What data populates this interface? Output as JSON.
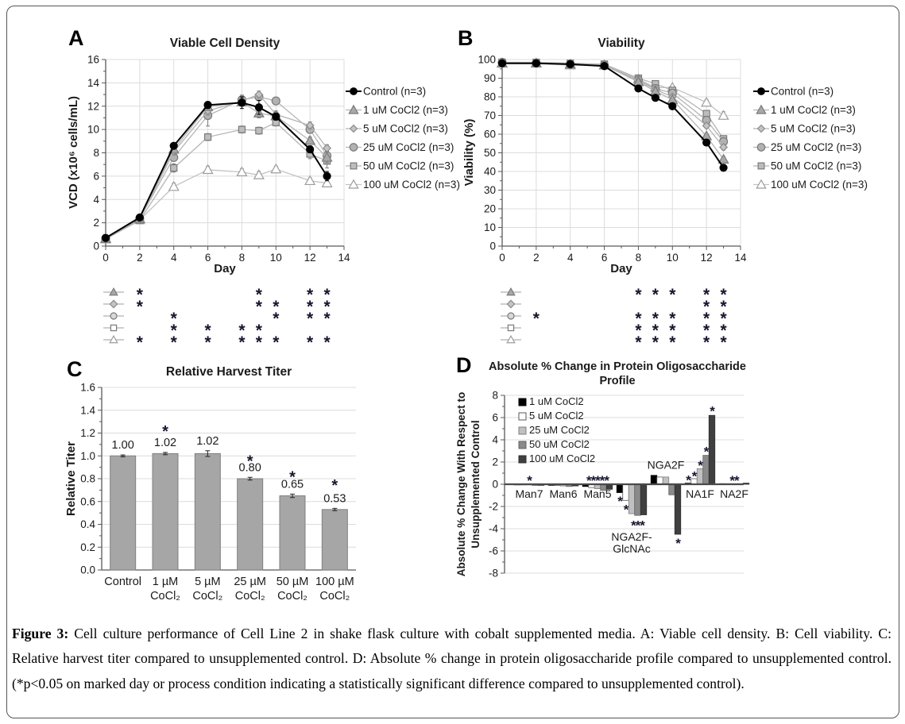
{
  "figure": {
    "panel_letters": {
      "a": "A",
      "b": "B",
      "c": "C",
      "d": "D"
    },
    "caption_prefix": "Figure 3:",
    "caption_body": "Cell culture performance of Cell Line 2 in shake flask culture with cobalt supplemented media. A: Viable cell density. B: Cell viability. C: Relative harvest titer compared to unsupplemented control. D: Absolute % change in protein oligosaccharide profile compared to unsupplemented control. (*p<0.05 on marked day or process condition indicating a statistically significant difference compared to unsupplemented control)."
  },
  "colors": {
    "grid": "#dcdcdc",
    "axis": "#595959",
    "tick_text": "#1a1a1a",
    "asterisk": "#16162e",
    "gray_line": "#b5b5b5"
  },
  "chart_data": [
    {
      "id": "chartA",
      "panel": "A",
      "type": "line",
      "title": "Viable Cell Density",
      "xlabel": "Day",
      "ylabel": "VCD (x10⁶ cells/mL)",
      "xlim": [
        0,
        14
      ],
      "ylim": [
        0,
        16
      ],
      "xticks": [
        0,
        2,
        4,
        6,
        8,
        10,
        12,
        14
      ],
      "ytick_step": 2,
      "ytick_minor": 1,
      "xtick_minor": 1,
      "x": [
        0,
        2,
        4,
        6,
        8,
        9,
        10,
        12,
        13
      ],
      "legend_position": "right",
      "series": [
        {
          "name": "Control (n=3)",
          "marker": "circle",
          "size": 9,
          "fill": "#000000",
          "stroke": "#000000",
          "line": "#000000",
          "lw": 2,
          "values": [
            0.7,
            2.45,
            8.6,
            12.1,
            12.3,
            11.9,
            11.1,
            8.3,
            6.0
          ],
          "err": [
            0,
            0,
            0.25,
            0.3,
            0.5,
            0.6,
            0.3,
            0.3,
            0.4
          ]
        },
        {
          "name": "1 uM CoCl2 (n=3)",
          "marker": "triangle",
          "size": 10,
          "fill": "#a8a8a8",
          "stroke": "#7a7a7a",
          "line": "#b5b5b5",
          "lw": 1.3,
          "values": [
            0.65,
            2.35,
            8.3,
            11.95,
            12.35,
            11.4,
            11.15,
            9.05,
            7.6
          ],
          "err": [
            0,
            0,
            0.3,
            0.3,
            0.35,
            0.4,
            0.3,
            0.3,
            0.45
          ]
        },
        {
          "name": "5 uM CoCl2 (n=3)",
          "marker": "diamond",
          "size": 8,
          "fill": "#c4c4c4",
          "stroke": "#8a8a8a",
          "line": "#b5b5b5",
          "lw": 1.3,
          "values": [
            0.65,
            2.3,
            8.1,
            11.6,
            12.45,
            13.0,
            11.3,
            10.35,
            8.4
          ],
          "err": [
            0,
            0,
            0.3,
            0.35,
            0.35,
            0.3,
            0.3,
            0.3,
            0.3
          ]
        },
        {
          "name": "25 uM CoCl2 (n=3)",
          "marker": "circle",
          "size": 10,
          "fill": "#b2b2b2",
          "stroke": "#7a7a7a",
          "line": "#b5b5b5",
          "lw": 1.3,
          "values": [
            0.65,
            2.35,
            7.6,
            11.2,
            12.55,
            12.8,
            12.45,
            10.0,
            7.75
          ],
          "err": [
            0,
            0,
            0.3,
            0.9,
            0.4,
            0.3,
            0.3,
            0.3,
            0.4
          ]
        },
        {
          "name": "50 uM CoCl2 (n=3)",
          "marker": "square",
          "size": 9,
          "fill": "#bdbdbd",
          "stroke": "#7a7a7a",
          "line": "#b5b5b5",
          "lw": 1.3,
          "values": [
            0.6,
            2.2,
            6.7,
            9.35,
            10.0,
            9.9,
            10.6,
            7.9,
            7.3
          ],
          "err": [
            0,
            0,
            0.35,
            0.3,
            0.3,
            0.3,
            0.3,
            0.4,
            0.6
          ]
        },
        {
          "name": "100 uM CoCl2 (n=3)",
          "marker": "triangle",
          "size": 10,
          "fill": "#ffffff",
          "stroke": "#9c9c9c",
          "line": "#c2c2c2",
          "lw": 1.3,
          "values": [
            0.6,
            2.25,
            5.1,
            6.55,
            6.35,
            6.1,
            6.6,
            5.6,
            5.4
          ],
          "err": [
            0,
            0.15,
            0.3,
            0.3,
            0.3,
            0.3,
            0.25,
            0.25,
            0.3
          ]
        }
      ]
    },
    {
      "id": "chartB",
      "panel": "B",
      "type": "line",
      "title": "Viability",
      "xlabel": "Day",
      "ylabel": "Viability (%)",
      "xlim": [
        0,
        14
      ],
      "ylim": [
        0,
        100
      ],
      "xticks": [
        0,
        2,
        4,
        6,
        8,
        10,
        12,
        14
      ],
      "ytick_step": 10,
      "ytick_minor": 5,
      "xtick_minor": 1,
      "x": [
        0,
        2,
        4,
        6,
        8,
        9,
        10,
        12,
        13
      ],
      "legend_position": "right",
      "series": [
        {
          "name": "Control (n=3)",
          "marker": "circle",
          "size": 9,
          "fill": "#000000",
          "stroke": "#000000",
          "line": "#000000",
          "lw": 2,
          "values": [
            98,
            98,
            97.5,
            96.5,
            84.5,
            79.5,
            75,
            55.5,
            42
          ],
          "err": [
            0.5,
            0.5,
            0.5,
            0.5,
            1,
            1,
            1,
            1,
            1
          ]
        },
        {
          "name": "1 uM CoCl2 (n=3)",
          "marker": "triangle",
          "size": 10,
          "fill": "#a8a8a8",
          "stroke": "#7a7a7a",
          "line": "#b5b5b5",
          "lw": 1.3,
          "values": [
            98,
            98,
            97.5,
            97,
            88,
            83,
            78.5,
            59,
            46.5
          ],
          "err": [
            0.5,
            0.5,
            0.5,
            0.5,
            1,
            1,
            1,
            1.2,
            1.5
          ]
        },
        {
          "name": "5 uM CoCl2 (n=3)",
          "marker": "diamond",
          "size": 8,
          "fill": "#c4c4c4",
          "stroke": "#8a8a8a",
          "line": "#b5b5b5",
          "lw": 1.3,
          "values": [
            98.5,
            98,
            97.5,
            97,
            88.5,
            84,
            80,
            64.5,
            53
          ],
          "err": [
            0.5,
            0.5,
            0.5,
            0.5,
            1,
            1,
            1,
            1.2,
            1.5
          ]
        },
        {
          "name": "25 uM CoCl2 (n=3)",
          "marker": "circle",
          "size": 10,
          "fill": "#b2b2b2",
          "stroke": "#7a7a7a",
          "line": "#b5b5b5",
          "lw": 1.3,
          "values": [
            98.5,
            98,
            97.5,
            97,
            89,
            84.5,
            82,
            67.5,
            56
          ],
          "err": [
            0.5,
            0.5,
            0.5,
            0.5,
            1,
            1,
            1.2,
            1.5,
            1.5
          ]
        },
        {
          "name": "50 uM CoCl2 (n=3)",
          "marker": "square",
          "size": 9,
          "fill": "#bdbdbd",
          "stroke": "#7a7a7a",
          "line": "#b5b5b5",
          "lw": 1.3,
          "values": [
            98.5,
            98.5,
            98,
            97.5,
            90,
            87,
            83.5,
            71,
            57.5
          ],
          "err": [
            0.5,
            0.5,
            0.5,
            0.5,
            1,
            1,
            1,
            1.5,
            1.5
          ]
        },
        {
          "name": "100 uM CoCl2 (n=3)",
          "marker": "triangle",
          "size": 10,
          "fill": "#ffffff",
          "stroke": "#9c9c9c",
          "line": "#c2c2c2",
          "lw": 1.3,
          "values": [
            98,
            98,
            97,
            97,
            89.5,
            85,
            85,
            77,
            70
          ],
          "err": [
            0.5,
            0.5,
            0.5,
            0.5,
            1.2,
            1.2,
            1.2,
            1.5,
            2
          ]
        }
      ]
    },
    {
      "id": "chartC",
      "panel": "C",
      "type": "bar",
      "title": "Relative Harvest Titer",
      "ylabel": "Relative Titer",
      "ylim": [
        0,
        1.6
      ],
      "ytick_step": 0.2,
      "ytick_minor": 0.1,
      "categories": [
        [
          "Control"
        ],
        [
          "1 µM",
          "CoCl₂"
        ],
        [
          "5 µM",
          "CoCl₂"
        ],
        [
          "25 µM",
          "CoCl₂"
        ],
        [
          "50 µM",
          "CoCl₂"
        ],
        [
          "100 µM",
          "CoCl₂"
        ]
      ],
      "values": [
        1.0,
        1.02,
        1.02,
        0.8,
        0.65,
        0.53
      ],
      "value_labels": [
        "1.00",
        "1.02",
        "1.02",
        "0.80",
        "0.65",
        "0.53"
      ],
      "err": [
        0.008,
        0.01,
        0.025,
        0.012,
        0.015,
        0.01
      ],
      "asterisk_y": [
        null,
        1.23,
        null,
        0.97,
        0.83,
        0.76
      ],
      "bar_fill": "#a6a6a6",
      "bar_stroke": "#808080"
    },
    {
      "id": "chartD",
      "panel": "D",
      "type": "grouped_bar",
      "title_lines": [
        "Absolute % Change in Protein Oligosaccharide",
        "Profile"
      ],
      "ylabel_lines": [
        "Absolute % Change With Respect to",
        "Unsupplemented Control"
      ],
      "ylim": [
        -8,
        8
      ],
      "ytick_step": 2,
      "ytick_minor": 1,
      "categories": [
        "Man7",
        "Man6",
        "Man5",
        "NGA2F-GlcNAc",
        "NGA2F",
        "NA1F",
        "NA2F"
      ],
      "cat_labels": [
        {
          "lines": [
            "Man7"
          ],
          "ys": [
            -0.85
          ]
        },
        {
          "lines": [
            "Man6"
          ],
          "ys": [
            -0.85
          ]
        },
        {
          "lines": [
            "Man5"
          ],
          "ys": [
            -0.85
          ]
        },
        {
          "lines": [
            "NGA2F-",
            "GlcNAc"
          ],
          "ys": [
            -4.7,
            -5.8
          ]
        },
        {
          "lines": [
            "NGA2F"
          ],
          "ys": [
            1.75
          ]
        },
        {
          "lines": [
            "NA1F"
          ],
          "ys": [
            -0.85
          ]
        },
        {
          "lines": [
            "NA2F"
          ],
          "ys": [
            -0.85
          ]
        }
      ],
      "series": [
        {
          "name": "1 uM CoCl2",
          "fill": "#000000",
          "stroke": "#000000",
          "values": [
            -0.05,
            -0.1,
            -0.2,
            -0.75,
            0.8,
            0.1,
            0.05
          ]
        },
        {
          "name": "5 uM CoCl2",
          "fill": "#ffffff",
          "stroke": "#595959",
          "values": [
            -0.05,
            -0.1,
            -0.3,
            -1.45,
            0.65,
            0.5,
            0.05
          ]
        },
        {
          "name": "25 uM CoCl2",
          "fill": "#c0c0c0",
          "stroke": "#7f7f7f",
          "values": [
            -0.05,
            -0.15,
            -0.4,
            -2.65,
            0.65,
            1.4,
            0.05
          ]
        },
        {
          "name": "50 uM CoCl2",
          "fill": "#8a8a8a",
          "stroke": "#636363",
          "values": [
            -0.1,
            -0.2,
            -0.55,
            -2.8,
            -0.95,
            2.6,
            0.05
          ]
        },
        {
          "name": "100 uM CoCl2",
          "fill": "#3f3f3f",
          "stroke": "#2e2e2e",
          "values": [
            -0.1,
            -0.15,
            -0.45,
            -2.75,
            -4.5,
            6.2,
            0.1
          ]
        }
      ],
      "annotations": [
        {
          "cat": 0,
          "bar": null,
          "text": "*",
          "y": 0.5
        },
        {
          "cat": 2,
          "bar": null,
          "text": "*****",
          "y": 0.5
        },
        {
          "cat": 3,
          "bar": 0,
          "text": "*",
          "y": -1.35
        },
        {
          "cat": 3,
          "bar": 1,
          "text": "*",
          "y": -2.1
        },
        {
          "cat": 3,
          "bar": 3,
          "text": "***",
          "y": -3.55
        },
        {
          "cat": 4,
          "bar": 4,
          "text": "*",
          "y": -5.15
        },
        {
          "cat": 5,
          "bar": 0,
          "text": "*",
          "y": 0.55
        },
        {
          "cat": 5,
          "bar": 1,
          "text": "*",
          "y": 0.9
        },
        {
          "cat": 5,
          "bar": 2,
          "text": "*",
          "y": 1.85
        },
        {
          "cat": 5,
          "bar": 3,
          "text": "*",
          "y": 3.1
        },
        {
          "cat": 5,
          "bar": 4,
          "text": "*",
          "y": 6.75
        },
        {
          "cat": 6,
          "bar": null,
          "text": "**",
          "y": 0.5
        }
      ]
    }
  ],
  "significance_grids": [
    {
      "id": "sigA",
      "panel": "A",
      "rows": [
        {
          "label": "1 uM CoCl2",
          "symbol": "triangle",
          "fill": "#a8a8a8",
          "stroke": "#7a7a7a",
          "days": [
            2,
            9,
            12,
            13
          ]
        },
        {
          "label": "5 uM CoCl2",
          "symbol": "diamond",
          "fill": "#c4c4c4",
          "stroke": "#8a8a8a",
          "days": [
            2,
            9,
            10,
            12,
            13
          ]
        },
        {
          "label": "25 uM CoCl2",
          "symbol": "circle",
          "fill": "#d8d8d8",
          "stroke": "#7a7a7a",
          "days": [
            4,
            10,
            12,
            13
          ]
        },
        {
          "label": "50 uM CoCl2",
          "symbol": "square",
          "fill": "#ffffff",
          "stroke": "#7a7a7a",
          "days": [
            4,
            6,
            8,
            9
          ]
        },
        {
          "label": "100 uM CoCl2",
          "symbol": "triangle",
          "fill": "#ffffff",
          "stroke": "#9c9c9c",
          "days": [
            2,
            4,
            6,
            8,
            9,
            10,
            12,
            13
          ]
        }
      ]
    },
    {
      "id": "sigB",
      "panel": "B",
      "rows": [
        {
          "label": "1 uM CoCl2",
          "symbol": "triangle",
          "fill": "#a8a8a8",
          "stroke": "#7a7a7a",
          "days": [
            8,
            9,
            10,
            12,
            13
          ]
        },
        {
          "label": "5 uM CoCl2",
          "symbol": "diamond",
          "fill": "#c4c4c4",
          "stroke": "#8a8a8a",
          "days": [
            12,
            13
          ]
        },
        {
          "label": "25 uM CoCl2",
          "symbol": "circle",
          "fill": "#d8d8d8",
          "stroke": "#7a7a7a",
          "days": [
            2,
            8,
            9,
            10,
            12,
            13
          ]
        },
        {
          "label": "50 uM CoCl2",
          "symbol": "square",
          "fill": "#ffffff",
          "stroke": "#7a7a7a",
          "days": [
            8,
            9,
            10,
            12,
            13
          ]
        },
        {
          "label": "100 uM CoCl2",
          "symbol": "triangle",
          "fill": "#ffffff",
          "stroke": "#9c9c9c",
          "days": [
            8,
            9,
            10,
            12,
            13
          ]
        }
      ]
    }
  ]
}
